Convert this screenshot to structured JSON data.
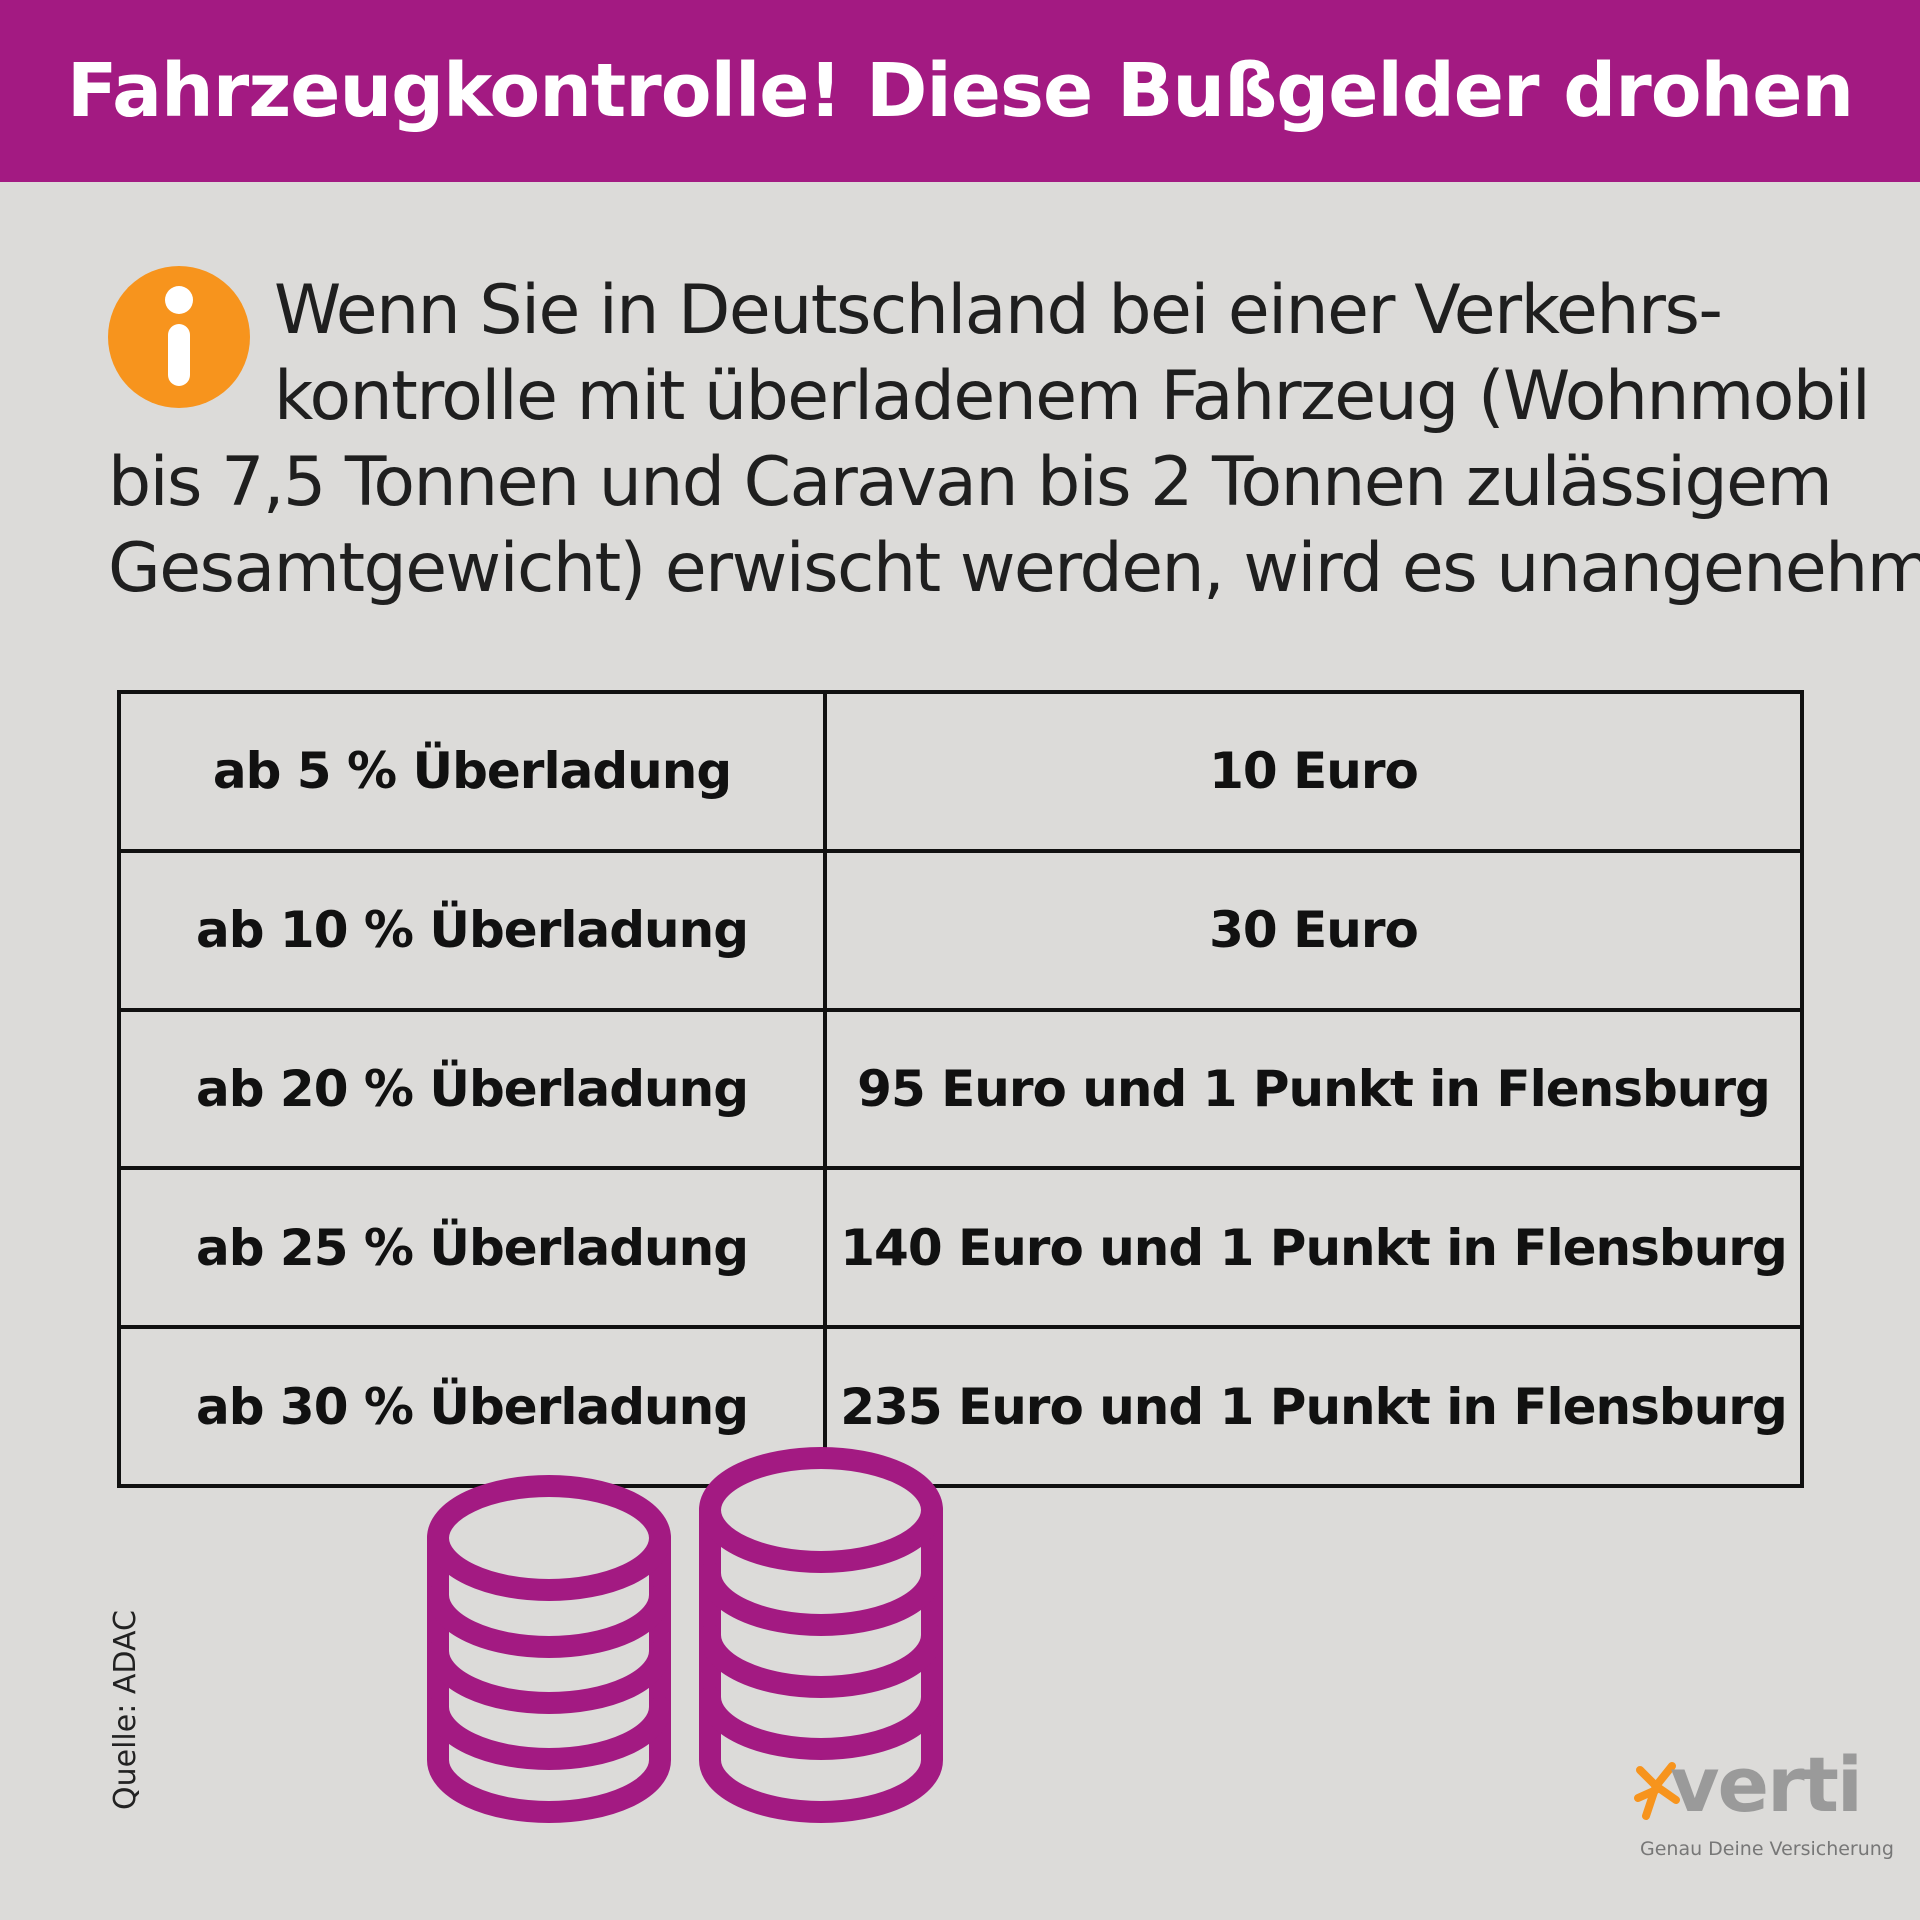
{
  "header": {
    "title": "Fahrzeugkontrolle! Diese Bußgelder drohen"
  },
  "intro": {
    "lines": [
      "Wenn Sie in Deutschland bei einer Verkehrs-",
      "kontrolle mit überladenem Fahrzeug (Wohnmobil",
      "bis 7,5 Tonnen und Caravan bis 2 Tonnen zulässigem",
      "Gesamtgewicht) erwischt werden, wird es unangenehm:"
    ]
  },
  "table": {
    "rows": [
      {
        "overload": "ab 5 % Überladung",
        "fine": "10 Euro"
      },
      {
        "overload": "ab 10 % Überladung",
        "fine": "30 Euro"
      },
      {
        "overload": "ab 20 % Überladung",
        "fine": "95 Euro und 1 Punkt in Flensburg"
      },
      {
        "overload": "ab 25 % Überladung",
        "fine": "140 Euro und 1 Punkt in Flensburg"
      },
      {
        "overload": "ab 30 % Überladung",
        "fine": "235 Euro und 1 Punkt in Flensburg"
      }
    ]
  },
  "source": "Quelle: ADAC",
  "logo": {
    "word": "verti",
    "slogan": "Genau Deine Versicherung"
  },
  "icons": {
    "info": "info-icon",
    "coins": "coin-stack-icon",
    "logo_figure": "star-figure-icon"
  },
  "colors": {
    "banner": "#a31a82",
    "coins": "#a31a82",
    "info": "#f7941d",
    "background": "#dcdbd9",
    "logo_accent": "#f7941d"
  }
}
